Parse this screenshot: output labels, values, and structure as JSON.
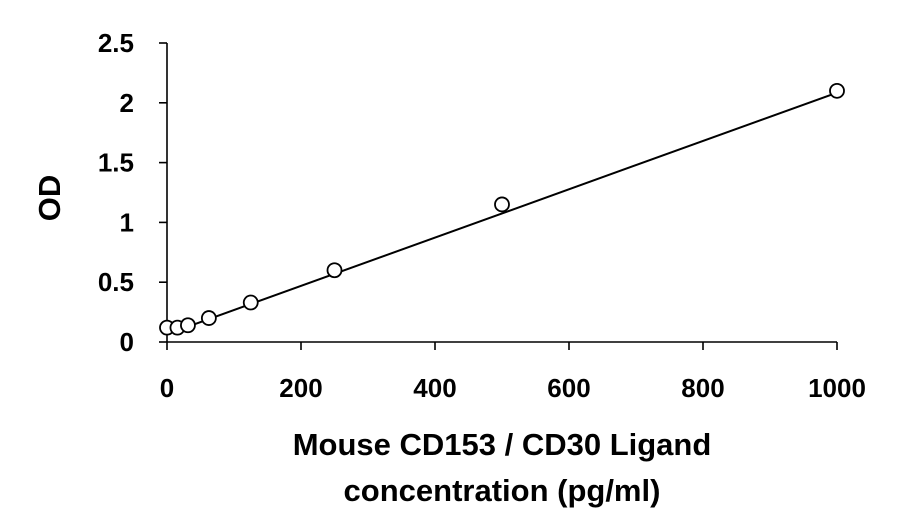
{
  "chart_data": {
    "type": "scatter",
    "xlabel": [
      "Mouse CD153 / CD30 Ligand",
      "concentration (pg/ml)"
    ],
    "ylabel": "OD",
    "xlim": [
      0,
      1000
    ],
    "ylim": [
      0,
      2.5
    ],
    "x_ticks": [
      "0",
      "200",
      "400",
      "600",
      "800",
      "1000"
    ],
    "y_ticks": [
      "0",
      "0.5",
      "1",
      "1.5",
      "2",
      "2.5"
    ],
    "grid": false,
    "legend": "none",
    "series": [
      {
        "x": [
          0,
          15.6,
          31.25,
          62.5,
          125,
          250,
          500,
          1000
        ],
        "y": [
          0.12,
          0.12,
          0.14,
          0.2,
          0.33,
          0.6,
          1.15,
          2.1
        ]
      }
    ],
    "trendline": {
      "type": "linear",
      "x": [
        0,
        1000
      ],
      "y": [
        0.065,
        2.085
      ]
    }
  }
}
